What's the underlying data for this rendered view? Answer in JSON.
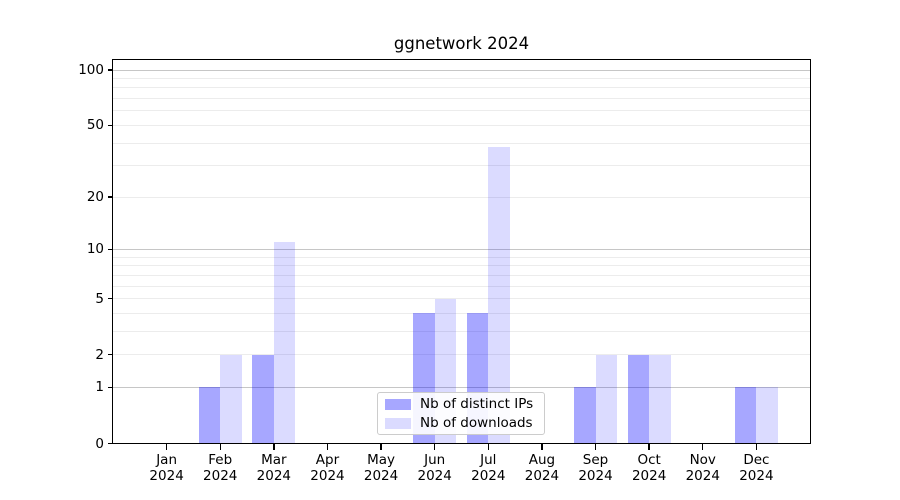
{
  "chart_data": {
    "type": "bar",
    "title": "ggnetwork 2024",
    "categories": [
      "Jan",
      "Feb",
      "Mar",
      "Apr",
      "May",
      "Jun",
      "Jul",
      "Aug",
      "Sep",
      "Oct",
      "Nov",
      "Dec"
    ],
    "x_year": "2024",
    "series": [
      {
        "name": "Nb of distinct IPs",
        "color": "#0000ff58",
        "values": [
          0,
          1,
          2,
          0,
          0,
          4,
          4,
          0,
          1,
          2,
          0,
          1
        ]
      },
      {
        "name": "Nb of downloads",
        "color": "#0000ff24",
        "values": [
          0,
          2,
          11,
          0,
          0,
          5,
          38,
          0,
          2,
          2,
          0,
          1
        ]
      }
    ],
    "yscale": "log1p",
    "ylim": [
      0,
      113
    ],
    "ytick_labels": [
      0,
      1,
      2,
      5,
      10,
      20,
      50,
      100
    ],
    "y_major_gridlines": [
      1,
      10,
      100
    ],
    "y_minor_gridlines": [
      2,
      3,
      4,
      5,
      6,
      7,
      8,
      9,
      20,
      30,
      40,
      50,
      60,
      70,
      80,
      90
    ],
    "grid": true,
    "legend_position": "lower-center",
    "colors": {
      "major_grid": "#c6c6c6",
      "minor_grid": "#ececec",
      "axis": "#000000",
      "text": "#000000",
      "legend_border": "#cccccc",
      "background": "#ffffff"
    }
  }
}
